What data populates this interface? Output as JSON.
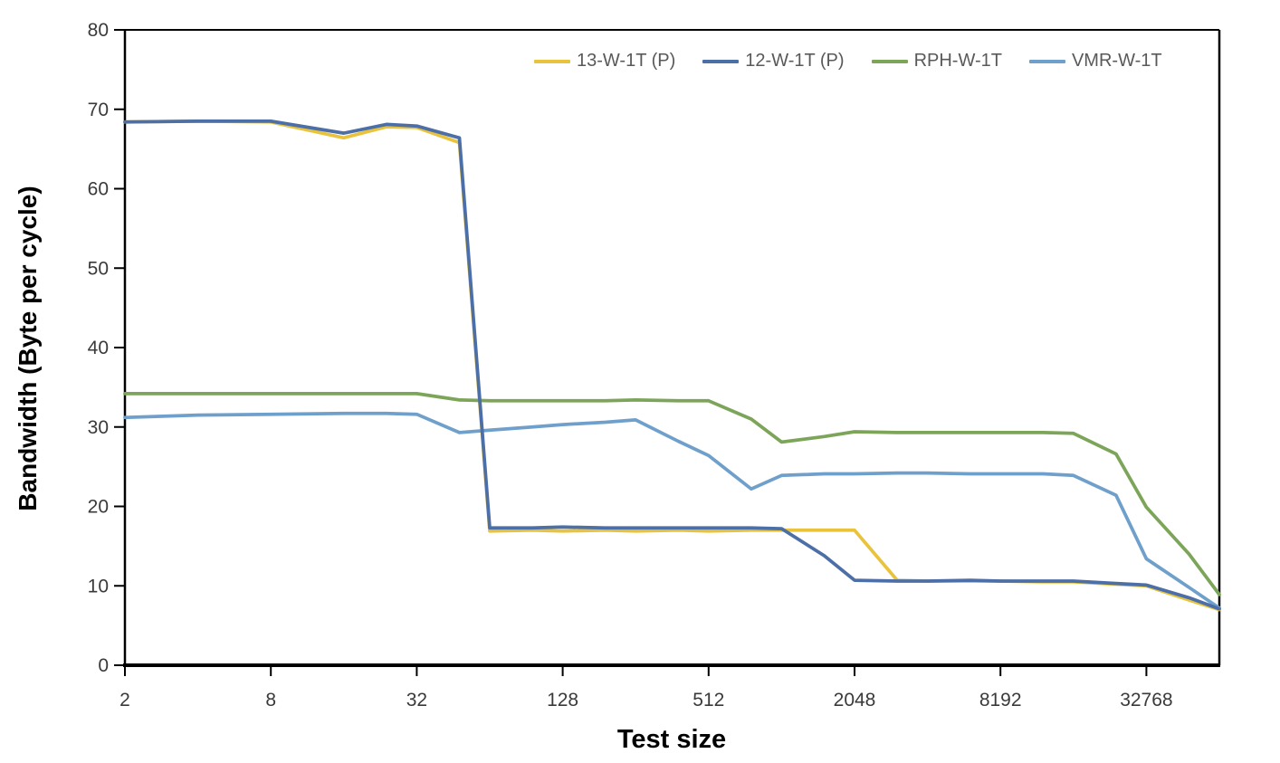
{
  "chart_data": {
    "type": "line",
    "title": "",
    "xlabel": "Test size",
    "ylabel": "Bandwidth (Byte per cycle)",
    "x_scale": "log2",
    "xlim": [
      2,
      65536
    ],
    "ylim": [
      0,
      80
    ],
    "y_ticks": [
      0,
      10,
      20,
      30,
      40,
      50,
      60,
      70,
      80
    ],
    "x_ticks": [
      2,
      8,
      32,
      128,
      512,
      2048,
      8192,
      32768
    ],
    "grid": false,
    "legend_position": "top-right",
    "x": [
      2,
      4,
      8,
      16,
      24,
      32,
      48,
      64,
      96,
      128,
      192,
      256,
      384,
      512,
      768,
      1024,
      1536,
      2048,
      3072,
      4096,
      6144,
      8192,
      12288,
      16384,
      24576,
      32768,
      49152,
      65536
    ],
    "series": [
      {
        "name": "13-W-1T (P)",
        "color": "#E9C33C",
        "values": [
          68.4,
          68.5,
          68.4,
          66.4,
          67.8,
          67.7,
          65.8,
          16.9,
          17.0,
          16.9,
          17.0,
          16.9,
          17.0,
          16.9,
          17.0,
          17.0,
          17.0,
          17.0,
          10.7,
          10.6,
          10.6,
          10.6,
          10.5,
          10.5,
          10.2,
          10.0,
          8.2,
          7.0
        ]
      },
      {
        "name": "12-W-1T (P)",
        "color": "#4C6FA8",
        "values": [
          68.4,
          68.5,
          68.5,
          67.0,
          68.1,
          67.9,
          66.4,
          17.3,
          17.3,
          17.4,
          17.3,
          17.3,
          17.3,
          17.3,
          17.3,
          17.2,
          13.8,
          10.7,
          10.6,
          10.6,
          10.7,
          10.6,
          10.6,
          10.6,
          10.3,
          10.1,
          8.5,
          7.1
        ]
      },
      {
        "name": "RPH-W-1T",
        "color": "#7CA559",
        "values": [
          34.2,
          34.2,
          34.2,
          34.2,
          34.2,
          34.2,
          33.4,
          33.3,
          33.3,
          33.3,
          33.3,
          33.4,
          33.3,
          33.3,
          31.0,
          28.1,
          28.8,
          29.4,
          29.3,
          29.3,
          29.3,
          29.3,
          29.3,
          29.2,
          26.6,
          19.9,
          14.0,
          8.9
        ]
      },
      {
        "name": "VMR-W-1T",
        "color": "#6FA0CB",
        "values": [
          31.2,
          31.5,
          31.6,
          31.7,
          31.7,
          31.6,
          29.3,
          29.6,
          30.0,
          30.3,
          30.6,
          30.9,
          28.2,
          26.4,
          22.2,
          23.9,
          24.1,
          24.1,
          24.2,
          24.2,
          24.1,
          24.1,
          24.1,
          23.9,
          21.4,
          13.4,
          9.8,
          7.2
        ]
      }
    ]
  },
  "colors": {
    "axis": "#000000",
    "tick_text": "#3A3A3A",
    "legend_text": "#595959",
    "background": "#FFFFFF"
  }
}
